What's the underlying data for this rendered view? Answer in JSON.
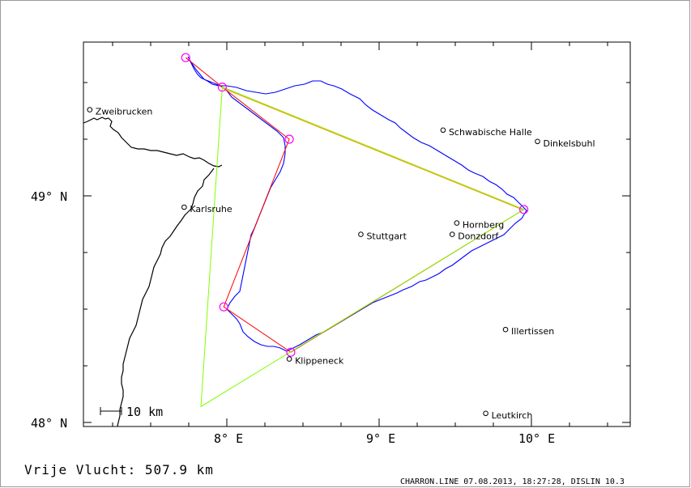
{
  "axes": {
    "x_ticks": [
      {
        "lon": 8,
        "label": "8° E"
      },
      {
        "lon": 9,
        "label": "9° E"
      },
      {
        "lon": 10,
        "label": "10° E"
      }
    ],
    "y_ticks": [
      {
        "lat": 49,
        "label": "49° N"
      },
      {
        "lat": 48,
        "label": "48° N"
      }
    ],
    "lon_range": [
      7.0,
      10.7
    ],
    "lat_range": [
      47.97,
      49.68
    ]
  },
  "cities": [
    {
      "name": "Zweibrucken",
      "lon": 7.1,
      "lat": 49.38
    },
    {
      "name": "Karlsruhe",
      "lon": 7.72,
      "lat": 48.95
    },
    {
      "name": "Stuttgart",
      "lon": 8.88,
      "lat": 48.83
    },
    {
      "name": "Schwabische Halle",
      "lon": 9.42,
      "lat": 49.29
    },
    {
      "name": "Dinkelsbuhl",
      "lon": 10.04,
      "lat": 49.24
    },
    {
      "name": "Hornberg",
      "lon": 9.51,
      "lat": 48.88
    },
    {
      "name": "Donzdorf",
      "lon": 9.48,
      "lat": 48.83
    },
    {
      "name": "Illertissen",
      "lon": 9.83,
      "lat": 48.41
    },
    {
      "name": "Klippeneck",
      "lon": 8.41,
      "lat": 48.28
    },
    {
      "name": "Leutkirch",
      "lon": 9.7,
      "lat": 48.04
    }
  ],
  "scale_bar": {
    "label": "10 km"
  },
  "turnpoints": [
    {
      "lon": 7.73,
      "lat": 49.61
    },
    {
      "lon": 7.97,
      "lat": 49.48
    },
    {
      "lon": 8.41,
      "lat": 49.25
    },
    {
      "lon": 7.98,
      "lat": 48.51
    },
    {
      "lon": 8.42,
      "lat": 48.31
    },
    {
      "lon": 9.95,
      "lat": 48.94
    }
  ],
  "colors": {
    "track": "#0000ff",
    "route_red": "#ff0000",
    "route_green": "#80ff00",
    "route_orange": "#ff9900",
    "turnpoint": "#ff00ff",
    "border": "#000000"
  },
  "footer": {
    "distance": "Vrije Vlucht:  507.9 km",
    "info": "CHARRON.LINE 07.08.2013, 18:27:28, DISLIN 10.3"
  }
}
